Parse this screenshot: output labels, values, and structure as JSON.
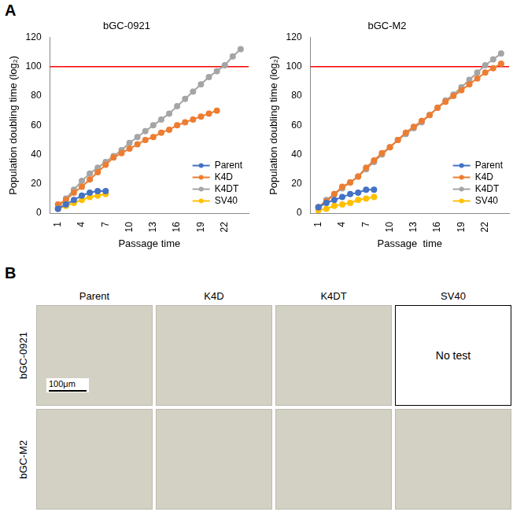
{
  "chart_data": [
    {
      "type": "line",
      "title": "bGC-0921",
      "x_label": "Passage time",
      "y_label": "Population doubling time (log₂)",
      "x": [
        1,
        2,
        3,
        4,
        5,
        6,
        7,
        8,
        9,
        10,
        11,
        12,
        13,
        14,
        15,
        16,
        17,
        18,
        19,
        20,
        21,
        22,
        23,
        24
      ],
      "series": [
        {
          "name": "Parent",
          "color": "#4472c4",
          "marker": "circle",
          "values": [
            3,
            6,
            9,
            12,
            14,
            15,
            15,
            null,
            null,
            null,
            null,
            null,
            null,
            null,
            null,
            null,
            null,
            null,
            null,
            null,
            null,
            null,
            null,
            null
          ]
        },
        {
          "name": "K4D",
          "color": "#ed7d31",
          "marker": "circle",
          "values": [
            6,
            9,
            14,
            18,
            23,
            28,
            33,
            38,
            41,
            44,
            47,
            50,
            52,
            55,
            57,
            60,
            62,
            64,
            66,
            68,
            70,
            null,
            null,
            null
          ]
        },
        {
          "name": "K4DT",
          "color": "#a5a5a5",
          "marker": "circle",
          "values": [
            3,
            10,
            16,
            22,
            27,
            31,
            35,
            39,
            43,
            48,
            52,
            56,
            60,
            64,
            68,
            73,
            78,
            83,
            88,
            93,
            97,
            101,
            107,
            112
          ]
        },
        {
          "name": "SV40",
          "color": "#ffc000",
          "marker": "circle",
          "values": [
            3,
            5,
            7,
            9,
            11,
            12,
            13,
            null,
            null,
            null,
            null,
            null,
            null,
            null,
            null,
            null,
            null,
            null,
            null,
            null,
            null,
            null,
            null,
            null
          ]
        }
      ],
      "reference_line": {
        "value": 100,
        "color": "#ff0000"
      },
      "xlim": [
        0,
        25
      ],
      "xticks": [
        1,
        4,
        7,
        10,
        13,
        16,
        19,
        22
      ],
      "ylim": [
        0,
        120
      ],
      "yticks": [
        0,
        20,
        40,
        60,
        80,
        100,
        120
      ],
      "grid": false,
      "legend": "lower right"
    },
    {
      "type": "line",
      "title": "bGC-M2",
      "x_label": "Passage  time",
      "y_label": "Population doubling time (log₂)",
      "x": [
        1,
        2,
        3,
        4,
        5,
        6,
        7,
        8,
        9,
        10,
        11,
        12,
        13,
        14,
        15,
        16,
        17,
        18,
        19,
        20,
        21,
        22,
        23,
        24
      ],
      "series": [
        {
          "name": "Parent",
          "color": "#4472c4",
          "marker": "circle",
          "values": [
            4,
            7,
            9,
            11,
            13,
            14,
            16,
            16,
            null,
            null,
            null,
            null,
            null,
            null,
            null,
            null,
            null,
            null,
            null,
            null,
            null,
            null,
            null,
            null
          ]
        },
        {
          "name": "K4D",
          "color": "#ed7d31",
          "marker": "circle",
          "values": [
            4,
            8,
            13,
            18,
            21,
            25,
            31,
            36,
            41,
            45,
            50,
            55,
            59,
            63,
            67,
            72,
            76,
            80,
            84,
            88,
            92,
            96,
            99,
            102
          ]
        },
        {
          "name": "K4DT",
          "color": "#a5a5a5",
          "marker": "circle",
          "values": [
            4,
            9,
            13,
            17,
            21,
            25,
            30,
            35,
            40,
            45,
            50,
            54,
            58,
            62,
            67,
            72,
            77,
            81,
            86,
            91,
            96,
            101,
            105,
            109
          ]
        },
        {
          "name": "SV40",
          "color": "#ffc000",
          "marker": "circle",
          "values": [
            2,
            3,
            5,
            6,
            7,
            9,
            10,
            11,
            null,
            null,
            null,
            null,
            null,
            null,
            null,
            null,
            null,
            null,
            null,
            null,
            null,
            null,
            null,
            null
          ]
        }
      ],
      "reference_line": {
        "value": 100,
        "color": "#ff0000"
      },
      "xlim": [
        0,
        25
      ],
      "xticks": [
        1,
        4,
        7,
        10,
        13,
        16,
        19,
        22
      ],
      "ylim": [
        0,
        120
      ],
      "yticks": [
        0,
        20,
        40,
        60,
        80,
        100,
        120
      ],
      "grid": false,
      "legend": "lower right"
    }
  ],
  "panel_labels": [
    "A",
    "B"
  ],
  "image_grid": {
    "columns": [
      "Parent",
      "K4D",
      "K4DT",
      "SV40"
    ],
    "rows": [
      "bGC-0921",
      "bGC-M2"
    ],
    "empty_cell": {
      "row": 0,
      "column": 3,
      "text": "No test"
    },
    "scale_bar": "100μm"
  }
}
